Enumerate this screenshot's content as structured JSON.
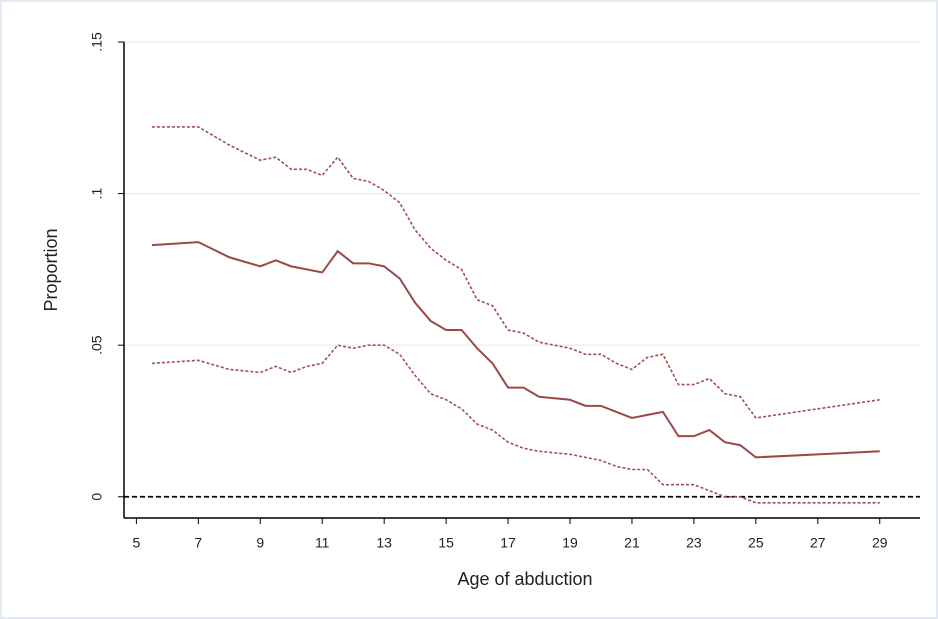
{
  "chart_data": {
    "type": "line",
    "x_label": "Age of abduction",
    "y_label": "Proportion",
    "xlim": [
      4.6,
      30.3
    ],
    "ylim": [
      -0.007,
      0.15
    ],
    "xticks": [
      5,
      7,
      9,
      11,
      13,
      15,
      17,
      19,
      21,
      23,
      25,
      27,
      29
    ],
    "yticks": [
      0,
      {
        "value": 0.05,
        "label": ".05"
      },
      {
        "value": 0.1,
        "label": ".1"
      },
      {
        "value": 0.15,
        "label": ".15"
      }
    ],
    "grid": true,
    "grid_color": "#dfe5f0",
    "hline": 0,
    "hline_color": "#000000",
    "x": [
      5.5,
      7,
      8,
      9,
      9.5,
      10,
      10.5,
      11,
      11.5,
      12,
      12.5,
      13,
      13.5,
      14,
      14.5,
      15,
      15.5,
      16,
      16.5,
      17,
      17.5,
      18,
      19,
      19.5,
      20,
      20.5,
      21,
      21.5,
      22,
      22.5,
      23,
      23.5,
      24,
      24.5,
      25,
      27,
      29
    ],
    "series": [
      {
        "color": "#9c4848",
        "style": "solid",
        "values": [
          0.083,
          0.084,
          0.079,
          0.076,
          0.078,
          0.076,
          0.075,
          0.074,
          0.081,
          0.077,
          0.077,
          0.076,
          0.072,
          0.064,
          0.058,
          0.055,
          0.055,
          0.049,
          0.044,
          0.036,
          0.036,
          0.033,
          0.032,
          0.03,
          0.03,
          0.028,
          0.026,
          0.027,
          0.028,
          0.02,
          0.02,
          0.022,
          0.018,
          0.017,
          0.013,
          0.014,
          0.015
        ]
      },
      {
        "color": "#a05050",
        "style": "dashed",
        "values": [
          0.122,
          0.122,
          0.116,
          0.111,
          0.112,
          0.108,
          0.108,
          0.106,
          0.112,
          0.105,
          0.104,
          0.101,
          0.097,
          0.088,
          0.082,
          0.078,
          0.075,
          0.065,
          0.063,
          0.055,
          0.054,
          0.051,
          0.049,
          0.047,
          0.047,
          0.044,
          0.042,
          0.046,
          0.047,
          0.037,
          0.037,
          0.039,
          0.034,
          0.033,
          0.026,
          0.029,
          0.032
        ]
      },
      {
        "color": "#a05050",
        "style": "dashed",
        "values": [
          0.044,
          0.045,
          0.042,
          0.041,
          0.043,
          0.041,
          0.043,
          0.044,
          0.05,
          0.049,
          0.05,
          0.05,
          0.047,
          0.04,
          0.034,
          0.032,
          0.029,
          0.024,
          0.022,
          0.018,
          0.016,
          0.015,
          0.014,
          0.013,
          0.012,
          0.01,
          0.009,
          0.009,
          0.004,
          0.004,
          0.004,
          0.002,
          0.0,
          0.0,
          -0.002,
          -0.002,
          -0.002
        ]
      }
    ]
  }
}
